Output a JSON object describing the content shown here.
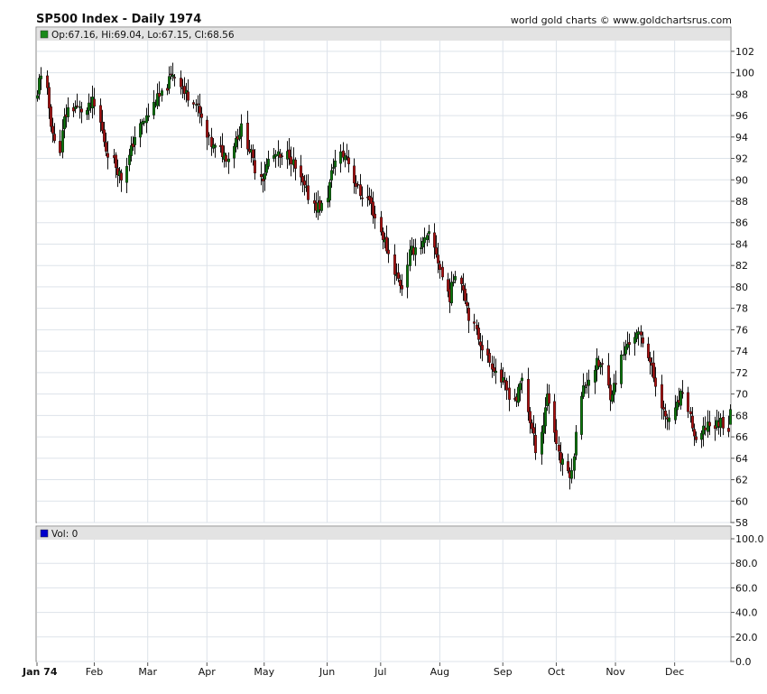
{
  "title": "SP500 Index - Daily 1974",
  "credit": "world gold charts © www.goldchartsrus.com",
  "ohlc_label": "Op:67.16, Hi:69.04, Lo:67.15, Cl:68.56",
  "vol_label": "Vol: 0",
  "colors": {
    "up": "#0a7a0a",
    "down": "#b01010",
    "wick": "#111111",
    "grid": "#dde3ea",
    "legend_bar": "#e3e3e3",
    "ohlc_swatch": "#1a8a1a",
    "vol_swatch": "#0000cc"
  },
  "chart_data": [
    {
      "type": "candlestick",
      "title": "SP500 Index - Daily 1974",
      "ylim": [
        58,
        103
      ],
      "y_ticks": [
        "102",
        "100",
        "98",
        "96",
        "94",
        "92",
        "90",
        "88",
        "86",
        "84",
        "82",
        "80",
        "78",
        "76",
        "74",
        "72",
        "70",
        "68",
        "66",
        "64",
        "62",
        "60",
        "58"
      ],
      "x_ticks": [
        {
          "label": "Jan 74",
          "date": "1974-01-02"
        },
        {
          "label": "Feb",
          "date": "1974-02-01"
        },
        {
          "label": "Mar",
          "date": "1974-03-01"
        },
        {
          "label": "Apr",
          "date": "1974-04-01"
        },
        {
          "label": "May",
          "date": "1974-05-01"
        },
        {
          "label": "Jun",
          "date": "1974-06-03"
        },
        {
          "label": "Jul",
          "date": "1974-07-01"
        },
        {
          "label": "Aug",
          "date": "1974-08-01"
        },
        {
          "label": "Sep",
          "date": "1974-09-03"
        },
        {
          "label": "Oct",
          "date": "1974-10-01"
        },
        {
          "label": "Nov",
          "date": "1974-11-01"
        },
        {
          "label": "Dec",
          "date": "1974-12-02"
        }
      ],
      "x_range": [
        "1974-01-02",
        "1974-12-31"
      ],
      "close_path": [
        [
          "1974-01-02",
          97.7
        ],
        [
          "1974-01-03",
          99.8
        ],
        [
          "1974-01-07",
          98.1
        ],
        [
          "1974-01-09",
          95.4
        ],
        [
          "1974-01-11",
          93.4
        ],
        [
          "1974-01-14",
          93.0
        ],
        [
          "1974-01-16",
          95.6
        ],
        [
          "1974-01-18",
          96.6
        ],
        [
          "1974-01-22",
          96.8
        ],
        [
          "1974-01-25",
          96.5
        ],
        [
          "1974-01-28",
          96.4
        ],
        [
          "1974-01-31",
          97.2
        ],
        [
          "1974-02-04",
          95.3
        ],
        [
          "1974-02-07",
          92.9
        ],
        [
          "1974-02-11",
          91.7
        ],
        [
          "1974-02-13",
          91.0
        ],
        [
          "1974-02-15",
          90.2
        ],
        [
          "1974-02-19",
          92.1
        ],
        [
          "1974-02-22",
          94.1
        ],
        [
          "1974-02-26",
          95.2
        ],
        [
          "1974-03-01",
          96.1
        ],
        [
          "1974-03-05",
          97.4
        ],
        [
          "1974-03-08",
          97.8
        ],
        [
          "1974-03-12",
          99.2
        ],
        [
          "1974-03-14",
          100.0
        ],
        [
          "1974-03-18",
          99.1
        ],
        [
          "1974-03-20",
          98.1
        ],
        [
          "1974-03-25",
          97.6
        ],
        [
          "1974-03-28",
          96.1
        ],
        [
          "1974-04-01",
          93.9
        ],
        [
          "1974-04-04",
          93.0
        ],
        [
          "1974-04-08",
          92.7
        ],
        [
          "1974-04-12",
          92.1
        ],
        [
          "1974-04-16",
          93.9
        ],
        [
          "1974-04-19",
          94.8
        ],
        [
          "1974-04-23",
          92.9
        ],
        [
          "1974-04-26",
          91.1
        ],
        [
          "1974-04-30",
          90.3
        ],
        [
          "1974-05-03",
          91.8
        ],
        [
          "1974-05-07",
          92.3
        ],
        [
          "1974-05-10",
          91.8
        ],
        [
          "1974-05-14",
          92.5
        ],
        [
          "1974-05-17",
          91.0
        ],
        [
          "1974-05-21",
          89.5
        ],
        [
          "1974-05-24",
          88.5
        ],
        [
          "1974-05-28",
          87.6
        ],
        [
          "1974-05-31",
          87.5
        ],
        [
          "1974-06-03",
          88.6
        ],
        [
          "1974-06-06",
          91.5
        ],
        [
          "1974-06-10",
          92.3
        ],
        [
          "1974-06-13",
          92.2
        ],
        [
          "1974-06-17",
          90.0
        ],
        [
          "1974-06-20",
          88.7
        ],
        [
          "1974-06-25",
          88.1
        ],
        [
          "1974-06-28",
          86.5
        ],
        [
          "1974-07-02",
          84.7
        ],
        [
          "1974-07-05",
          83.1
        ],
        [
          "1974-07-09",
          81.0
        ],
        [
          "1974-07-12",
          80.0
        ],
        [
          "1974-07-16",
          83.1
        ],
        [
          "1974-07-19",
          83.7
        ],
        [
          "1974-07-23",
          84.0
        ],
        [
          "1974-07-26",
          84.7
        ],
        [
          "1974-07-30",
          83.2
        ],
        [
          "1974-08-02",
          80.9
        ],
        [
          "1974-08-06",
          79.1
        ],
        [
          "1974-08-09",
          81.5
        ],
        [
          "1974-08-13",
          80.0
        ],
        [
          "1974-08-16",
          77.4
        ],
        [
          "1974-08-21",
          75.3
        ],
        [
          "1974-08-26",
          73.3
        ],
        [
          "1974-08-29",
          72.5
        ],
        [
          "1974-09-03",
          71.0
        ],
        [
          "1974-09-06",
          70.0
        ],
        [
          "1974-09-10",
          69.5
        ],
        [
          "1974-09-13",
          71.5
        ],
        [
          "1974-09-17",
          67.5
        ],
        [
          "1974-09-20",
          65.0
        ],
        [
          "1974-09-24",
          67.2
        ],
        [
          "1974-09-26",
          70.2
        ],
        [
          "1974-09-30",
          66.5
        ],
        [
          "1974-10-03",
          63.7
        ],
        [
          "1974-10-07",
          62.8
        ],
        [
          "1974-10-09",
          62.5
        ],
        [
          "1974-10-11",
          66.8
        ],
        [
          "1974-10-15",
          70.5
        ],
        [
          "1974-10-18",
          71.5
        ],
        [
          "1974-10-22",
          72.8
        ],
        [
          "1974-10-25",
          72.5
        ],
        [
          "1974-10-29",
          70.0
        ],
        [
          "1974-10-31",
          70.7
        ],
        [
          "1974-11-04",
          73.3
        ],
        [
          "1974-11-07",
          74.7
        ],
        [
          "1974-11-11",
          75.5
        ],
        [
          "1974-11-14",
          75.3
        ],
        [
          "1974-11-18",
          73.8
        ],
        [
          "1974-11-21",
          71.5
        ],
        [
          "1974-11-25",
          69.2
        ],
        [
          "1974-11-27",
          67.5
        ],
        [
          "1974-12-02",
          68.3
        ],
        [
          "1974-12-05",
          69.8
        ],
        [
          "1974-12-09",
          68.7
        ],
        [
          "1974-12-11",
          67.0
        ],
        [
          "1974-12-13",
          65.2
        ],
        [
          "1974-12-17",
          66.5
        ],
        [
          "1974-12-19",
          67.3
        ],
        [
          "1974-12-23",
          67.0
        ],
        [
          "1974-12-26",
          67.5
        ],
        [
          "1974-12-30",
          66.8
        ],
        [
          "1974-12-31",
          68.56
        ]
      ],
      "last_bar": {
        "open": 67.16,
        "high": 69.04,
        "low": 67.15,
        "close": 68.56
      }
    },
    {
      "type": "bar",
      "title": "Vol: 0",
      "ylim": [
        0,
        100
      ],
      "y_ticks": [
        "100.0",
        "80.0",
        "60.0",
        "40.0",
        "20.0",
        "0.0"
      ],
      "values": []
    }
  ]
}
